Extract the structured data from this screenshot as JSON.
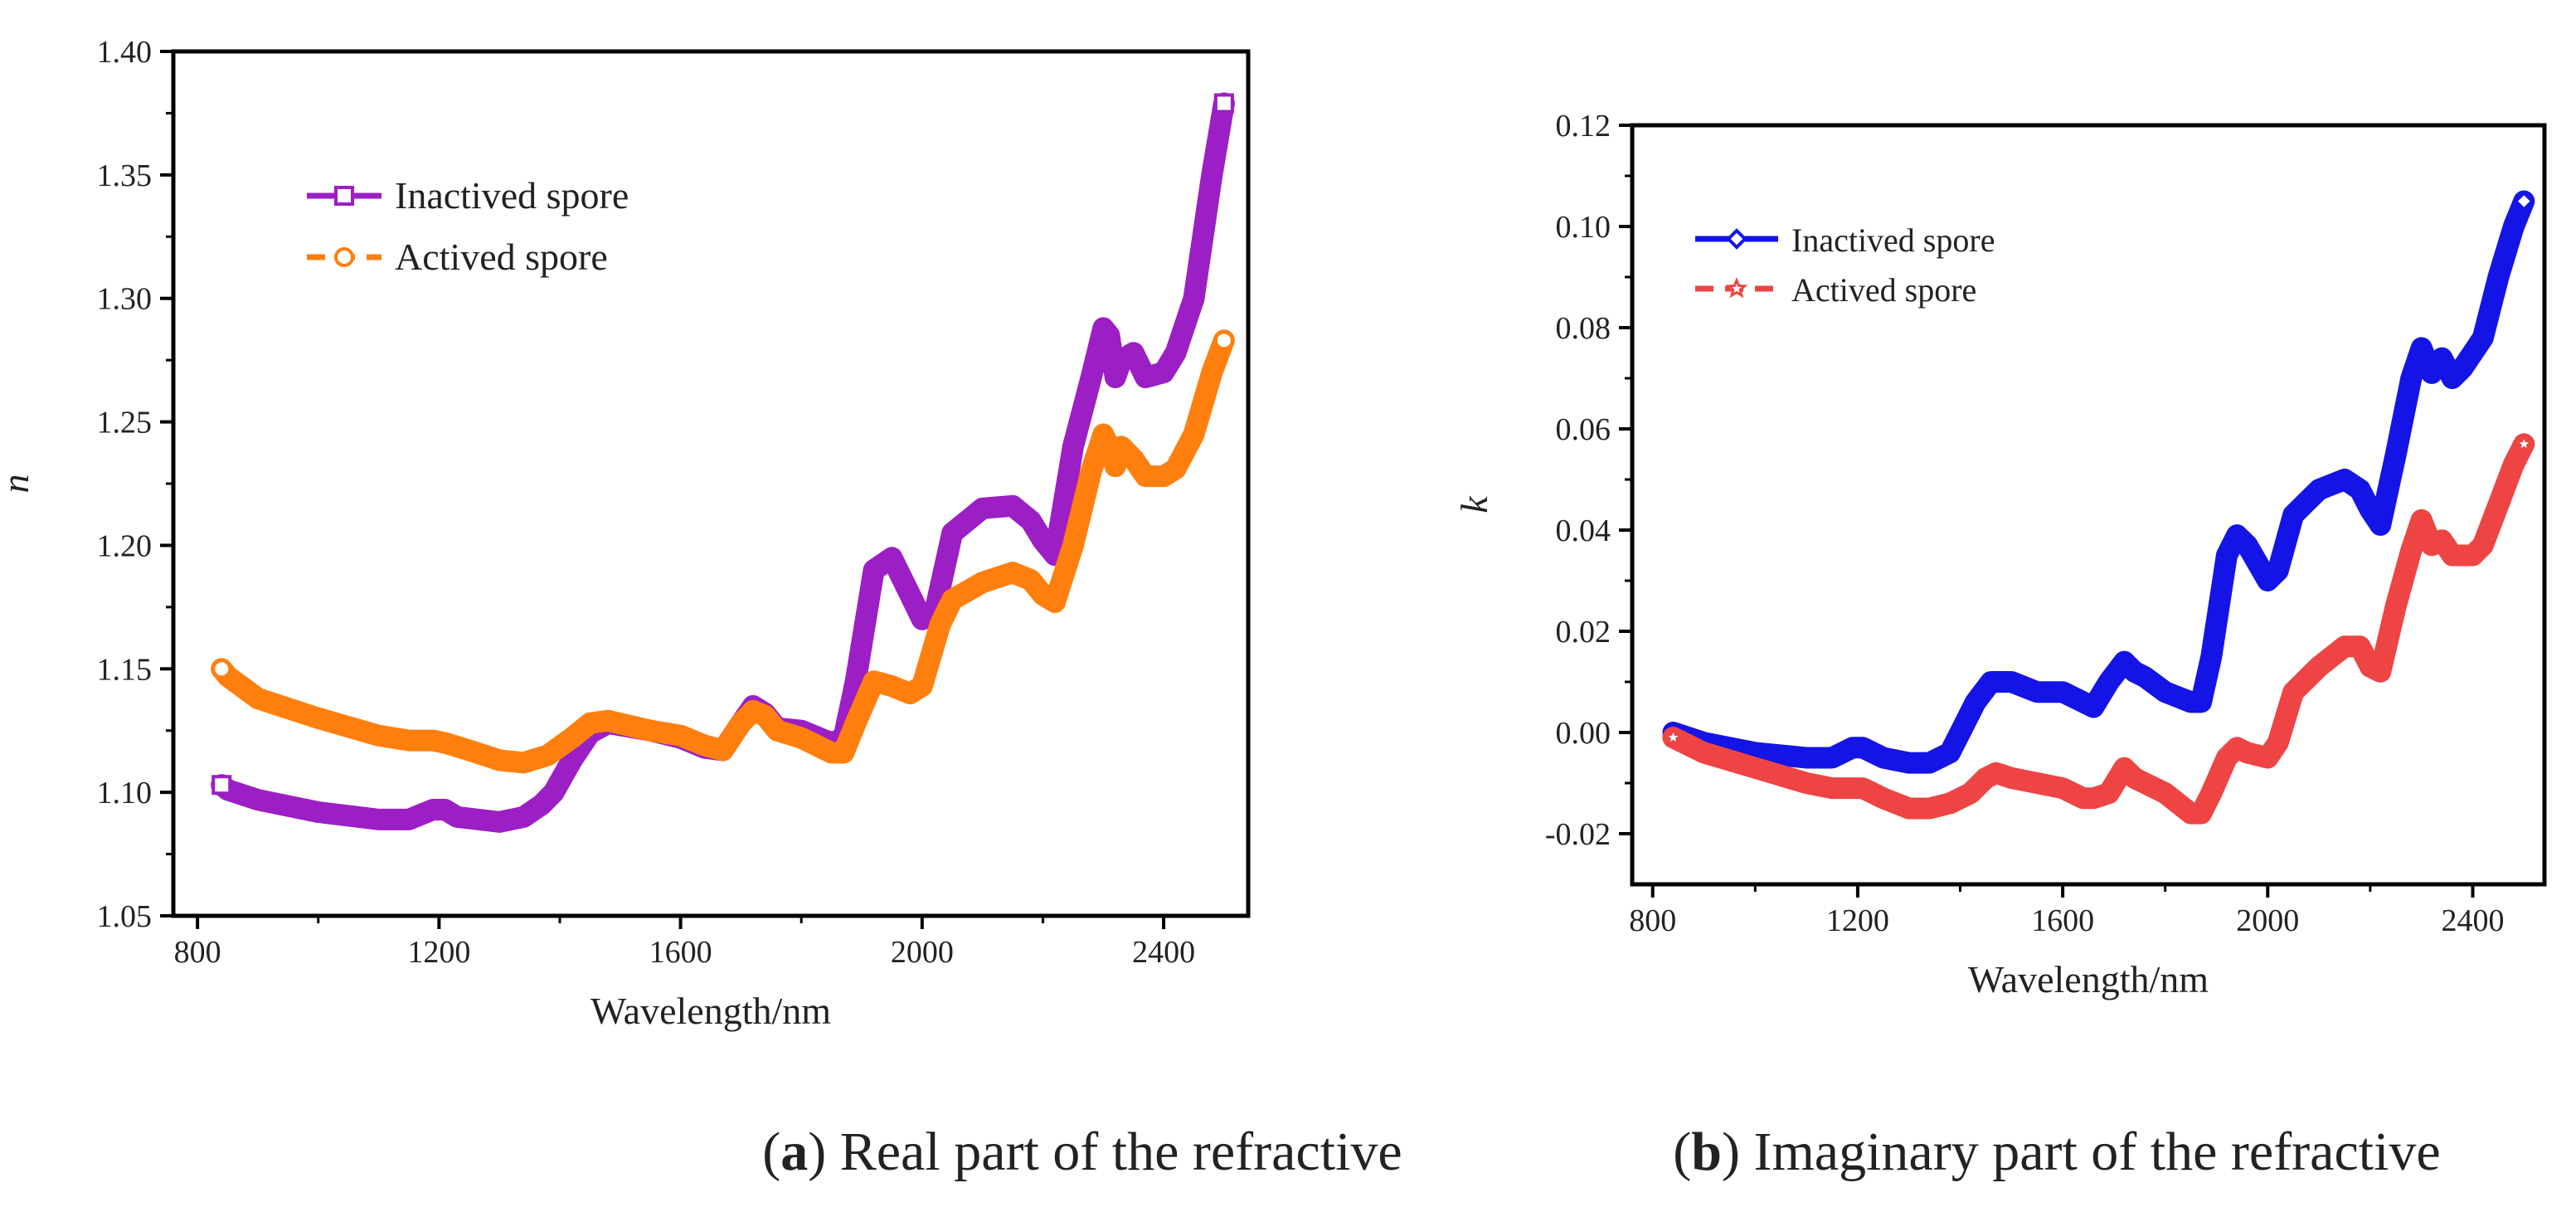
{
  "chart_data": [
    {
      "type": "line",
      "panel": "a",
      "caption_letter": "a",
      "caption_text": " Real part of the refractive",
      "xlabel": "Wavelength/nm",
      "ylabel": "n",
      "xlim": [
        760,
        2540
      ],
      "ylim": [
        1.05,
        1.4
      ],
      "xticks": [
        800,
        1200,
        1600,
        2000,
        2400
      ],
      "yticks": [
        1.05,
        1.1,
        1.15,
        1.2,
        1.25,
        1.3,
        1.35,
        1.4
      ],
      "ytick_labels": [
        "1.05",
        "1.10",
        "1.15",
        "1.20",
        "1.25",
        "1.30",
        "1.35",
        "1.40"
      ],
      "legend_position": "top-left",
      "series": [
        {
          "name": "Inactived spore",
          "color": "#9b1fc4",
          "marker": "square",
          "x": [
            840,
            850,
            900,
            1000,
            1100,
            1150,
            1190,
            1210,
            1230,
            1300,
            1340,
            1370,
            1390,
            1420,
            1450,
            1480,
            1550,
            1600,
            1640,
            1670,
            1700,
            1720,
            1740,
            1760,
            1800,
            1850,
            1870,
            1890,
            1920,
            1950,
            1980,
            2000,
            2020,
            2050,
            2100,
            2150,
            2180,
            2200,
            2220,
            2250,
            2280,
            2300,
            2310,
            2320,
            2330,
            2350,
            2370,
            2400,
            2420,
            2450,
            2480,
            2500
          ],
          "y": [
            1.103,
            1.101,
            1.097,
            1.092,
            1.089,
            1.089,
            1.093,
            1.093,
            1.09,
            1.088,
            1.09,
            1.095,
            1.1,
            1.113,
            1.124,
            1.128,
            1.125,
            1.122,
            1.118,
            1.117,
            1.128,
            1.135,
            1.132,
            1.126,
            1.125,
            1.12,
            1.122,
            1.145,
            1.19,
            1.195,
            1.18,
            1.17,
            1.172,
            1.205,
            1.215,
            1.216,
            1.21,
            1.202,
            1.196,
            1.24,
            1.268,
            1.288,
            1.285,
            1.268,
            1.275,
            1.278,
            1.268,
            1.27,
            1.278,
            1.3,
            1.35,
            1.379
          ]
        },
        {
          "name": "Actived spore",
          "color": "#ff7f0e",
          "marker": "circle",
          "x": [
            840,
            850,
            900,
            1000,
            1100,
            1150,
            1190,
            1210,
            1250,
            1300,
            1340,
            1380,
            1420,
            1450,
            1480,
            1550,
            1600,
            1640,
            1670,
            1700,
            1720,
            1740,
            1760,
            1800,
            1850,
            1870,
            1890,
            1920,
            1950,
            1980,
            2000,
            2030,
            2050,
            2100,
            2150,
            2180,
            2200,
            2220,
            2250,
            2280,
            2300,
            2310,
            2320,
            2330,
            2350,
            2370,
            2400,
            2420,
            2450,
            2480,
            2500
          ],
          "y": [
            1.15,
            1.147,
            1.138,
            1.13,
            1.123,
            1.121,
            1.121,
            1.12,
            1.117,
            1.113,
            1.112,
            1.115,
            1.122,
            1.128,
            1.129,
            1.125,
            1.123,
            1.119,
            1.117,
            1.128,
            1.133,
            1.131,
            1.125,
            1.122,
            1.116,
            1.116,
            1.128,
            1.145,
            1.143,
            1.14,
            1.143,
            1.168,
            1.178,
            1.185,
            1.189,
            1.186,
            1.18,
            1.177,
            1.2,
            1.23,
            1.245,
            1.24,
            1.232,
            1.24,
            1.235,
            1.228,
            1.228,
            1.231,
            1.245,
            1.27,
            1.283
          ]
        }
      ]
    },
    {
      "type": "line",
      "panel": "b",
      "caption_letter": "b",
      "caption_text": " Imaginary part of the refractive",
      "xlabel": "Wavelength/nm",
      "ylabel": "k",
      "xlim": [
        760,
        2540
      ],
      "ylim": [
        -0.03,
        0.12
      ],
      "xticks": [
        800,
        1200,
        1600,
        2000,
        2400
      ],
      "yticks": [
        -0.02,
        0.0,
        0.02,
        0.04,
        0.06,
        0.08,
        0.1,
        0.12
      ],
      "ytick_labels": [
        "-0.02",
        "0.00",
        "0.02",
        "0.04",
        "0.06",
        "0.08",
        "0.10",
        "0.12"
      ],
      "legend_position": "top-left",
      "series": [
        {
          "name": "Inactived spore",
          "color": "#1414e6",
          "marker": "diamond",
          "x": [
            840,
            900,
            1000,
            1100,
            1150,
            1190,
            1210,
            1250,
            1300,
            1340,
            1380,
            1400,
            1430,
            1460,
            1500,
            1550,
            1600,
            1640,
            1660,
            1690,
            1720,
            1740,
            1760,
            1800,
            1850,
            1870,
            1890,
            1920,
            1940,
            1960,
            2000,
            2020,
            2050,
            2100,
            2150,
            2180,
            2200,
            2220,
            2250,
            2280,
            2300,
            2320,
            2340,
            2360,
            2380,
            2400,
            2420,
            2450,
            2480,
            2500
          ],
          "y": [
            0.0,
            -0.002,
            -0.004,
            -0.005,
            -0.005,
            -0.003,
            -0.003,
            -0.005,
            -0.006,
            -0.006,
            -0.004,
            0.0,
            0.006,
            0.01,
            0.01,
            0.008,
            0.008,
            0.006,
            0.005,
            0.01,
            0.014,
            0.012,
            0.011,
            0.008,
            0.006,
            0.006,
            0.015,
            0.035,
            0.039,
            0.037,
            0.03,
            0.032,
            0.043,
            0.048,
            0.05,
            0.048,
            0.044,
            0.041,
            0.055,
            0.07,
            0.076,
            0.071,
            0.074,
            0.07,
            0.072,
            0.075,
            0.078,
            0.09,
            0.1,
            0.105
          ]
        },
        {
          "name": "Actived spore",
          "color": "#ee4444",
          "marker": "star",
          "x": [
            840,
            900,
            1000,
            1100,
            1150,
            1190,
            1210,
            1250,
            1300,
            1340,
            1380,
            1420,
            1450,
            1470,
            1500,
            1550,
            1600,
            1640,
            1660,
            1690,
            1720,
            1740,
            1760,
            1800,
            1850,
            1870,
            1890,
            1920,
            1940,
            1960,
            2000,
            2020,
            2050,
            2100,
            2150,
            2180,
            2200,
            2220,
            2250,
            2280,
            2300,
            2320,
            2340,
            2360,
            2380,
            2400,
            2420,
            2450,
            2480,
            2500
          ],
          "y": [
            -0.001,
            -0.004,
            -0.007,
            -0.01,
            -0.011,
            -0.011,
            -0.011,
            -0.013,
            -0.015,
            -0.015,
            -0.014,
            -0.012,
            -0.009,
            -0.008,
            -0.009,
            -0.01,
            -0.011,
            -0.013,
            -0.013,
            -0.012,
            -0.007,
            -0.009,
            -0.01,
            -0.012,
            -0.016,
            -0.016,
            -0.012,
            -0.005,
            -0.003,
            -0.004,
            -0.005,
            -0.002,
            0.008,
            0.013,
            0.017,
            0.017,
            0.013,
            0.012,
            0.025,
            0.036,
            0.042,
            0.037,
            0.038,
            0.035,
            0.035,
            0.035,
            0.037,
            0.045,
            0.053,
            0.057
          ]
        }
      ]
    }
  ]
}
